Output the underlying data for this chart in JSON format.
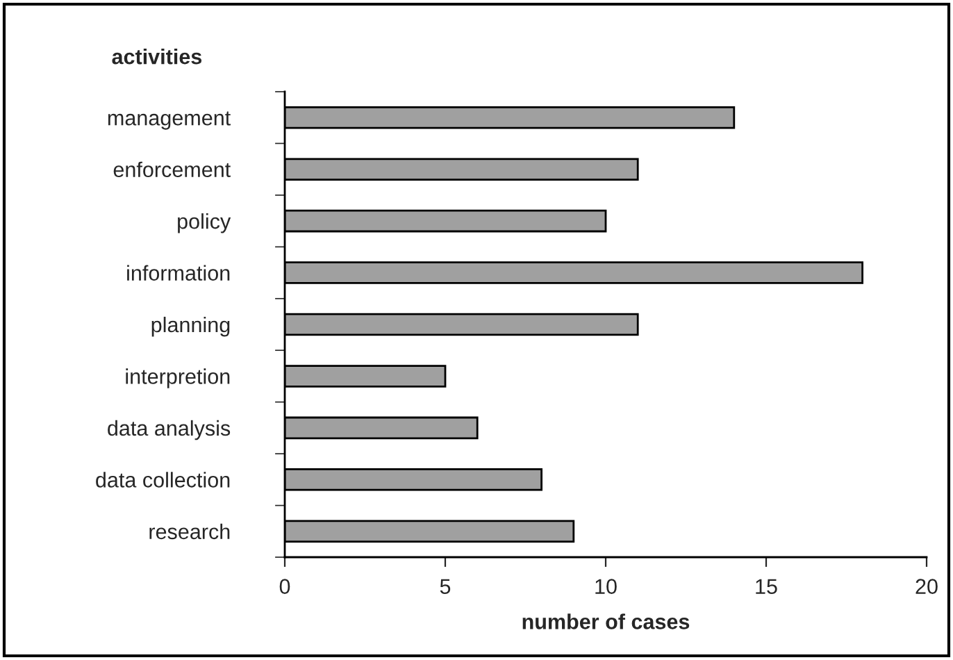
{
  "chart_data": {
    "type": "bar",
    "orientation": "horizontal",
    "xlabel": "number of cases",
    "ylabel": "activities",
    "categories": [
      "management",
      "enforcement",
      "policy",
      "information",
      "planning",
      "interpretion",
      "data analysis",
      "data collection",
      "research"
    ],
    "values": [
      14,
      11,
      10,
      18,
      11,
      5,
      6,
      8,
      9
    ],
    "color": "#a0a0a0",
    "xlim": [
      0,
      20
    ],
    "xticks": [
      0,
      5,
      10,
      15,
      20
    ],
    "grid": false,
    "legend": false
  }
}
